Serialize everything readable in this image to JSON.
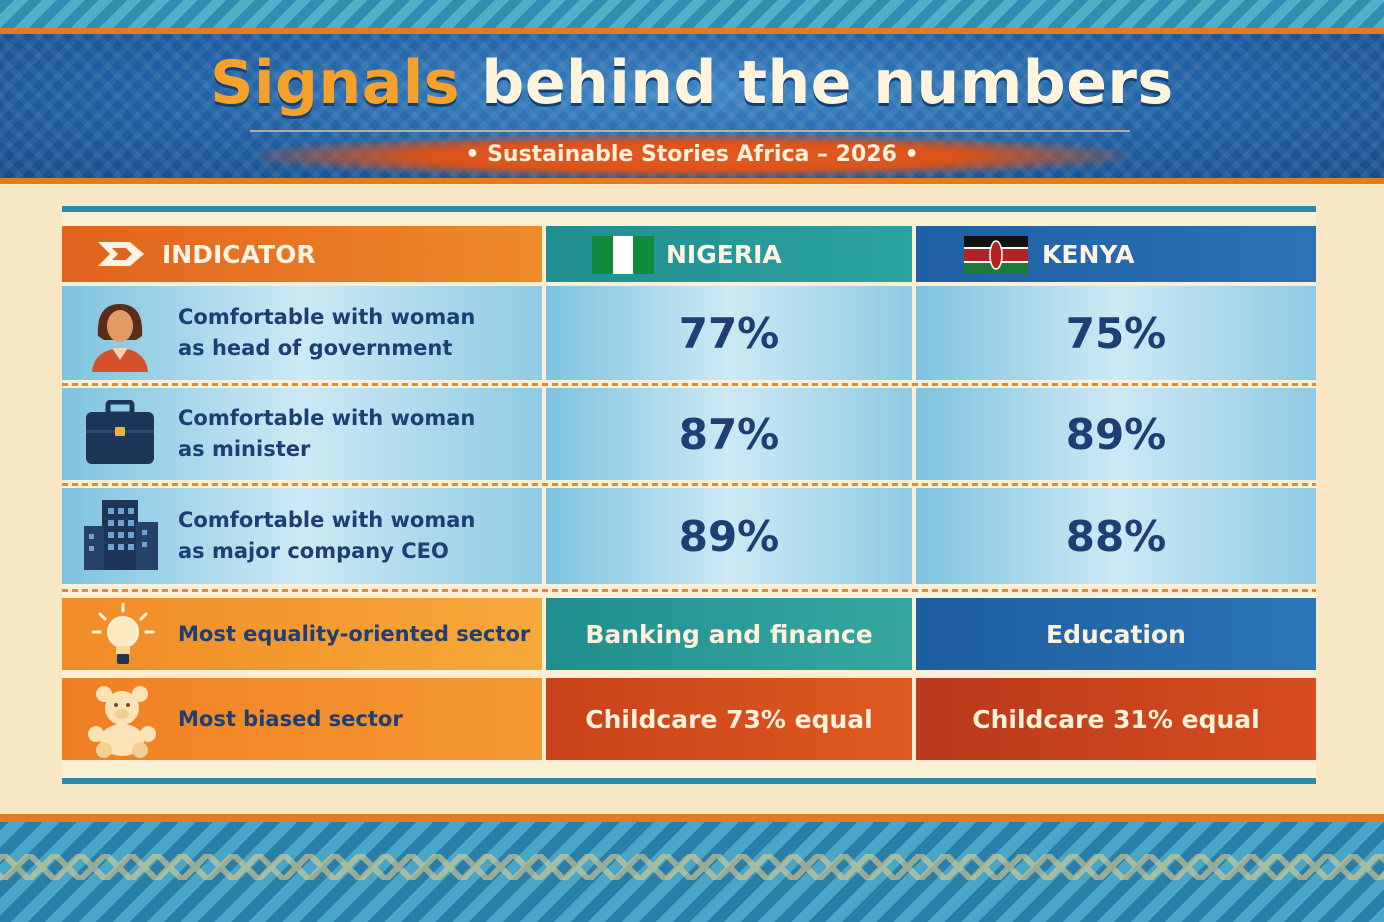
{
  "header": {
    "title_accent": "Signals",
    "title_rest": "behind the numbers",
    "subtitle": "• Sustainable Stories Africa – 2026 •"
  },
  "colors": {
    "orange": "#e0641f",
    "teal": "#1f8f8f",
    "blue": "#1f5fa2",
    "navy_text": "#1d3f73"
  },
  "table": {
    "col_indicator": "INDICATOR",
    "col_nigeria": "NIGERIA",
    "col_kenya": "KENYA",
    "rows": [
      {
        "icon": "woman-icon",
        "line1": "Comfortable with woman",
        "line2": "as head of government",
        "nigeria": "77%",
        "kenya": "75%"
      },
      {
        "icon": "briefcase-icon",
        "line1": "Comfortable with woman",
        "line2": "as minister",
        "nigeria": "87%",
        "kenya": "89%"
      },
      {
        "icon": "office-building-icon",
        "line1": "Comfortable with woman",
        "line2": "as major company CEO",
        "nigeria": "89%",
        "kenya": "88%"
      }
    ],
    "sector_equal": {
      "icon": "lightbulb-icon",
      "label": "Most equality-oriented sector",
      "nigeria": "Banking and finance",
      "kenya": "Education"
    },
    "sector_biased": {
      "icon": "teddy-bear-icon",
      "label": "Most biased sector",
      "nigeria": "Childcare 73% equal",
      "kenya": "Childcare 31% equal"
    }
  },
  "chart_data": {
    "type": "table",
    "title": "Signals behind the numbers",
    "subtitle": "Sustainable Stories Africa – 2026",
    "columns": [
      "INDICATOR",
      "NIGERIA",
      "KENYA"
    ],
    "rows": [
      [
        "Comfortable with woman as head of government",
        "77%",
        "75%"
      ],
      [
        "Comfortable with woman as minister",
        "87%",
        "89%"
      ],
      [
        "Comfortable with woman as major company CEO",
        "89%",
        "88%"
      ],
      [
        "Most equality-oriented sector",
        "Banking and finance",
        "Education"
      ],
      [
        "Most biased sector",
        "Childcare 73% equal",
        "Childcare 31% equal"
      ]
    ],
    "series": [
      {
        "name": "NIGERIA",
        "values": [
          77,
          87,
          89
        ]
      },
      {
        "name": "KENYA",
        "values": [
          75,
          89,
          88
        ]
      }
    ],
    "categories": [
      "Comfortable with woman as head of government",
      "Comfortable with woman as minister",
      "Comfortable with woman as major company CEO"
    ]
  }
}
